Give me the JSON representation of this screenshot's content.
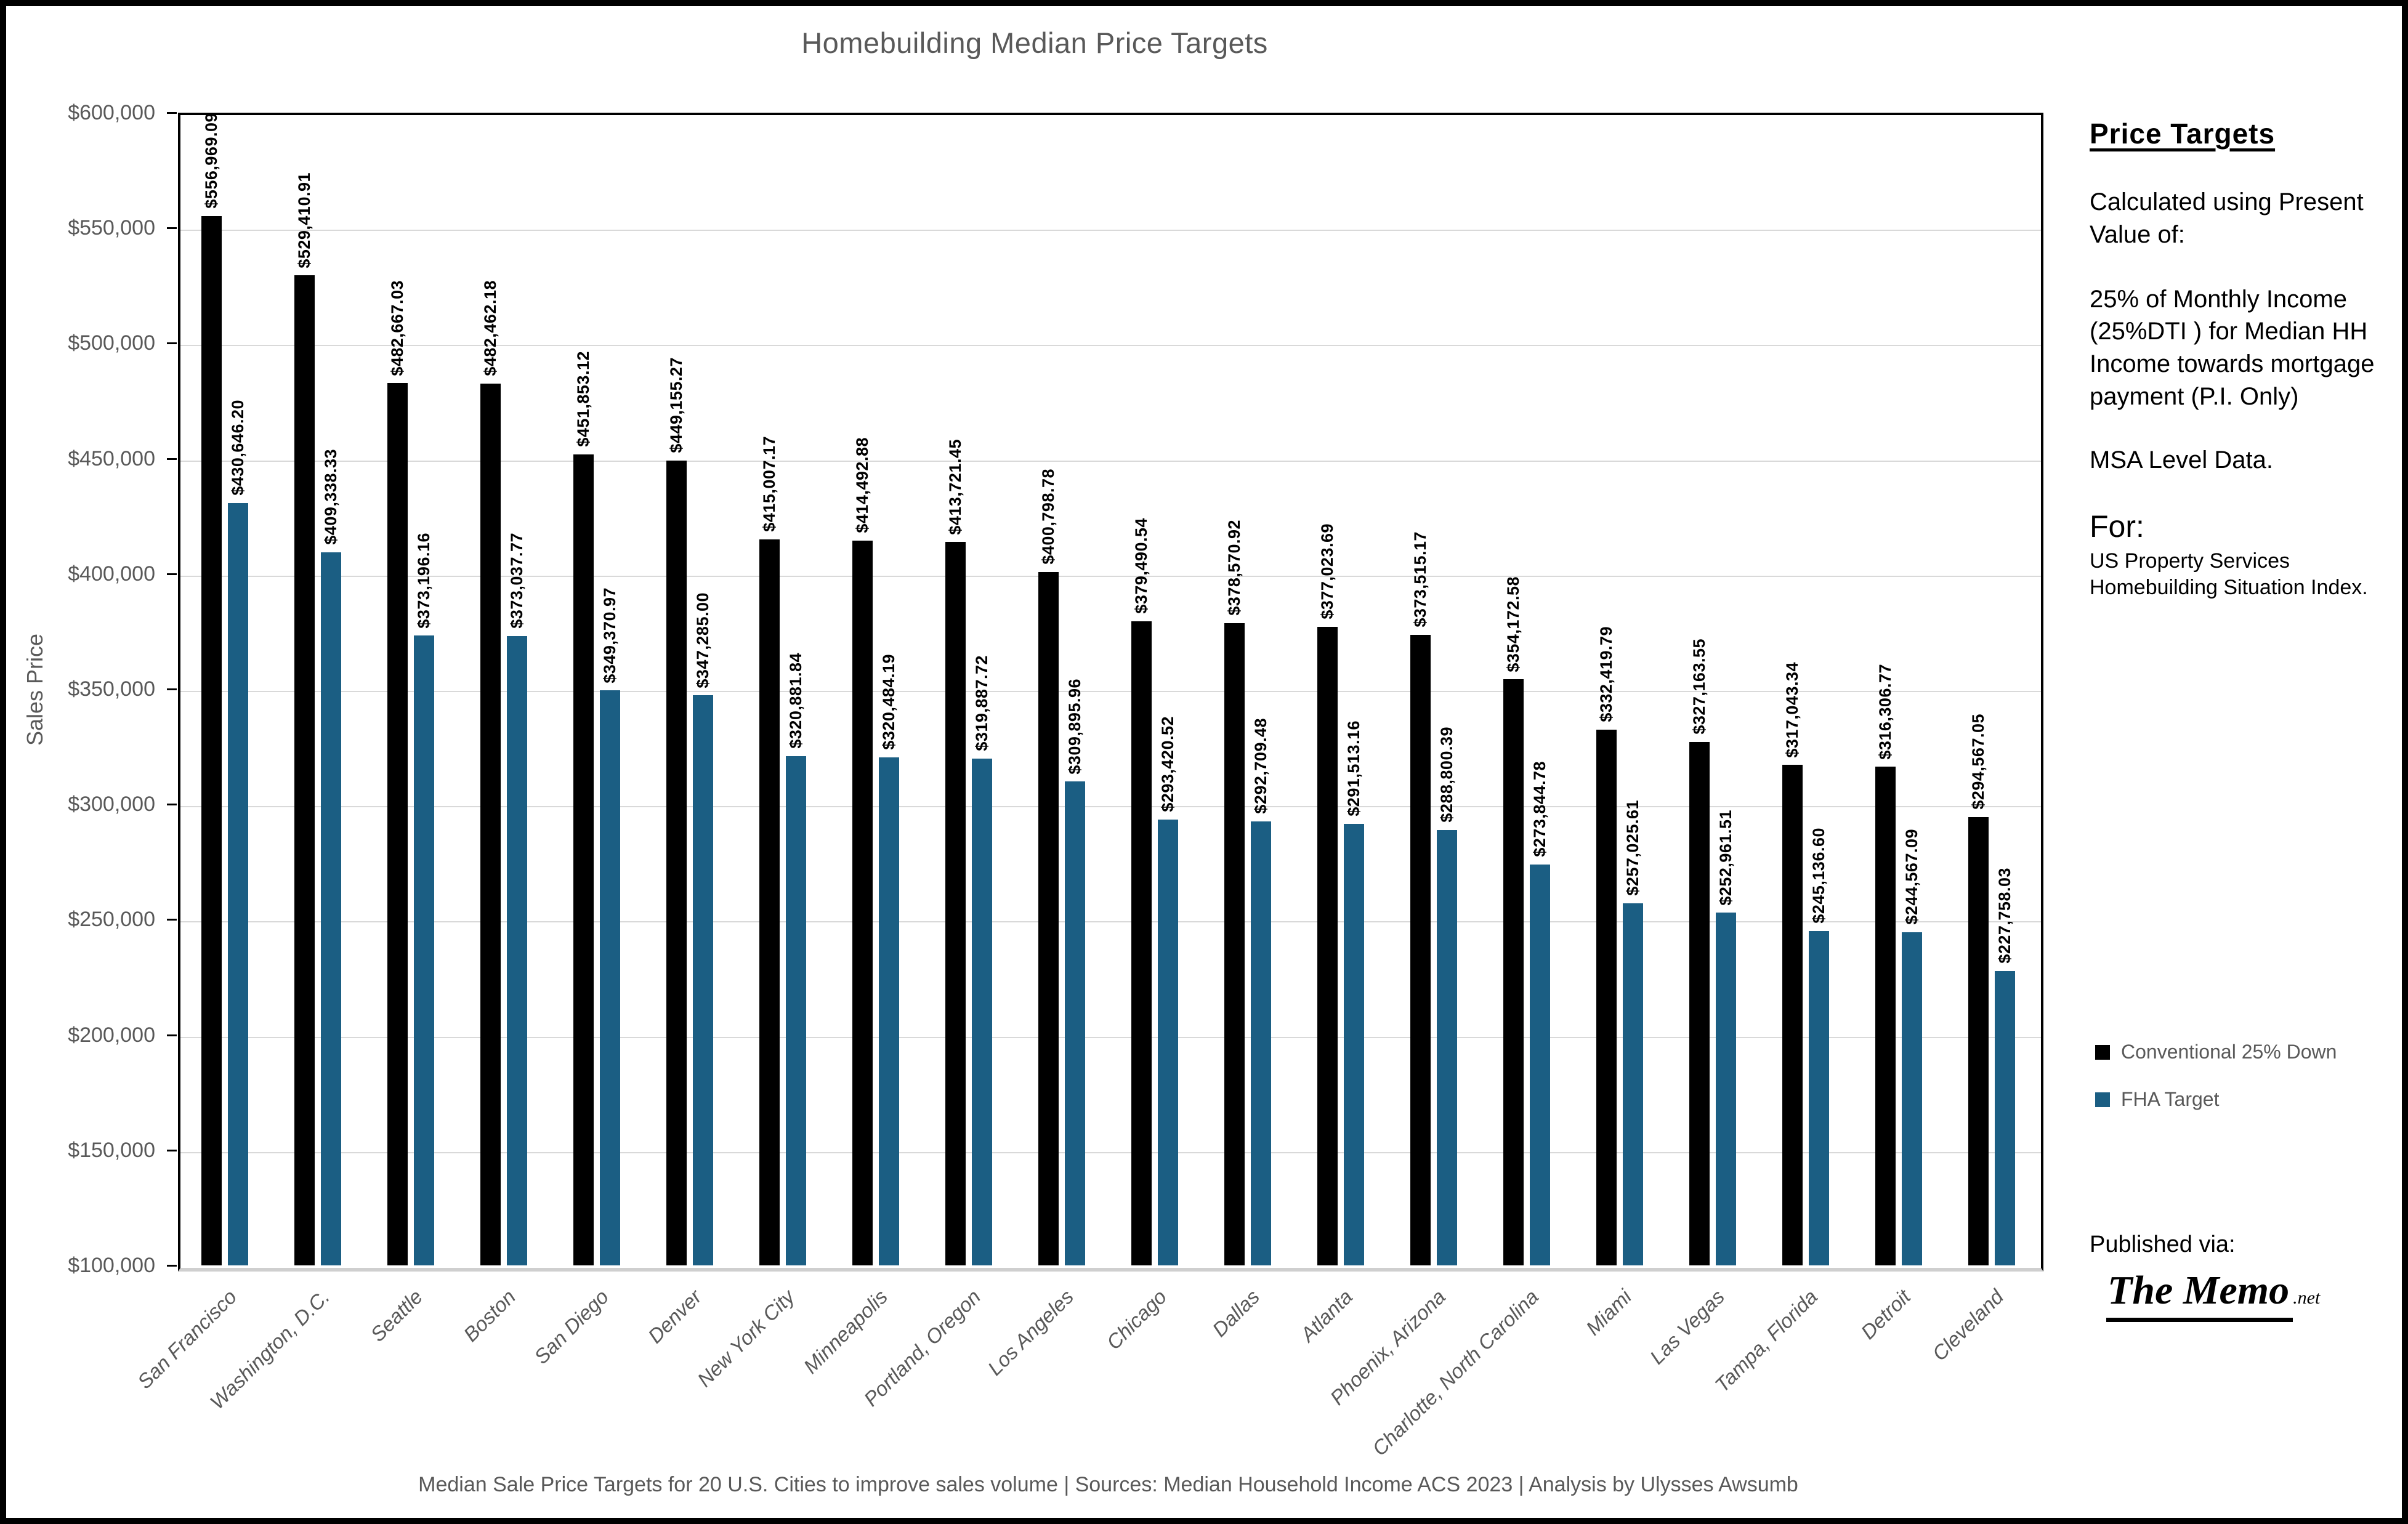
{
  "title": "Homebuilding Median Price Targets",
  "y_axis": {
    "label": "Sales Price",
    "ticks": [
      "$600,000",
      "$550,000",
      "$500,000",
      "$450,000",
      "$400,000",
      "$350,000",
      "$300,000",
      "$250,000",
      "$200,000",
      "$150,000",
      "$100,000"
    ],
    "min": 100000,
    "max": 600000,
    "step": 50000
  },
  "chart_data": {
    "type": "bar",
    "title": "Homebuilding Median Price Targets",
    "xlabel": "",
    "ylabel": "Sales Price",
    "ylim": [
      100000,
      600000
    ],
    "grid": true,
    "legend_position": "right",
    "categories": [
      "San Francisco",
      "Washington, D.C.",
      "Seattle",
      "Boston",
      "San Diego",
      "Denver",
      "New York City",
      "Minneapolis",
      "Portland, Oregon",
      "Los Angeles",
      "Chicago",
      "Dallas",
      "Atlanta",
      "Phoenix, Arizona",
      "Charlotte, North Carolina",
      "Miami",
      "Las Vegas",
      "Tampa, Florida",
      "Detroit",
      "Cleveland"
    ],
    "series": [
      {
        "name": "Conventional 25% Down",
        "color": "#000000",
        "values": [
          556969.09,
          529410.91,
          482667.03,
          482462.18,
          451853.12,
          449155.27,
          415007.17,
          414492.88,
          413721.45,
          400798.78,
          379490.54,
          378570.92,
          377023.69,
          373515.17,
          354172.58,
          332419.79,
          327163.55,
          317043.34,
          316306.77,
          294567.05
        ]
      },
      {
        "name": "FHA Target",
        "color": "#1b5e83",
        "values": [
          430646.2,
          409338.33,
          373196.16,
          373037.77,
          349370.97,
          347285.0,
          320881.84,
          320484.19,
          319887.72,
          309895.96,
          293420.52,
          292709.48,
          291513.16,
          288800.39,
          273844.78,
          257025.61,
          252961.51,
          245136.6,
          244567.09,
          227758.03
        ]
      }
    ]
  },
  "side_panel": {
    "heading": "Price Targets",
    "para1": "Calculated using Present Value of:",
    "para2": "25% of Monthly Income (25%DTI ) for Median HH Income towards mortgage payment (P.I. Only)",
    "para3": "MSA Level Data.",
    "for_label": "For:",
    "for_text": "US Property Services Homebuilding Situation Index.",
    "published_via": "Published via:",
    "logo_text": "The Memo",
    "logo_suffix": ".net"
  },
  "footer": {
    "caption": "Median Sale Price Targets for 20 U.S. Cities to improve sales volume | Sources: Median Household Income ACS 2023 | Analysis by Ulysses Awsumb"
  },
  "colors": {
    "conventional": "#000000",
    "fha": "#1b5e83",
    "axis_text": "#595959",
    "gridline": "#d9d9d9"
  }
}
